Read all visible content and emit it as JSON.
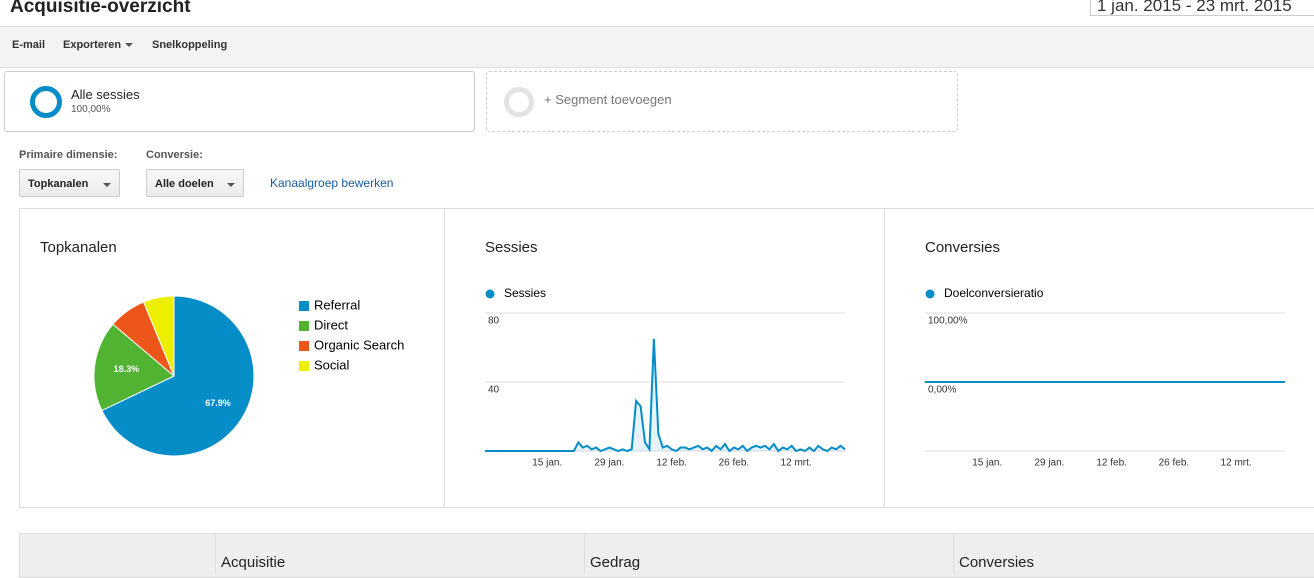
{
  "header": {
    "title": "Acquisitie-overzicht",
    "date_range": "1 jan. 2015 - 23 mrt. 2015"
  },
  "toolbar": {
    "items": [
      "E-mail",
      "Exporteren",
      "Snelkoppeling"
    ]
  },
  "segments": [
    {
      "name": "Alle sessies",
      "percent": "100,00%"
    },
    {
      "name": "+ Segment toevoegen"
    }
  ],
  "controls": {
    "primary_label": "Primaire dimensie:",
    "primary_value": "Topkanalen",
    "conversion_label": "Conversie:",
    "conversion_value": "Alle doelen",
    "link": "Kanaalgroep bewerken"
  },
  "panels": [
    {
      "title": "Topkanalen",
      "chart": {
        "type": "pie",
        "categories": [
          "Referral",
          "Direct",
          "Organic Search",
          "Social"
        ],
        "values": [
          67.9,
          18.3,
          7.6,
          6.2
        ],
        "value_labels": [
          "67.9%",
          "18.3%",
          null,
          null
        ],
        "colors": [
          "#058dc7",
          "#50b432",
          "#ed561b",
          "#edef00"
        ]
      }
    },
    {
      "title": "Sessies",
      "chart": {
        "type": "line",
        "series_name": "Sessies",
        "color": "#058dc7",
        "area": true,
        "x": [
          1,
          2,
          3,
          4,
          5,
          6,
          7,
          8,
          9,
          10,
          11,
          12,
          13,
          14,
          15,
          16,
          17,
          18,
          19,
          20,
          21,
          22,
          23,
          24,
          25,
          26,
          27,
          28,
          29,
          30,
          31,
          32,
          33,
          34,
          35,
          36,
          37,
          38,
          39,
          40,
          41,
          42,
          43,
          44,
          45,
          46,
          47,
          48,
          49,
          50,
          51,
          52,
          53,
          54,
          55,
          56,
          57,
          58,
          59,
          60,
          61,
          62,
          63,
          64,
          65,
          66,
          67,
          68,
          69,
          70,
          71,
          72,
          73,
          74,
          75,
          76,
          77,
          78,
          79,
          80,
          81,
          82
        ],
        "values": [
          0,
          0,
          0,
          0,
          0,
          0,
          0,
          0,
          0,
          0,
          0,
          0,
          0,
          0,
          0,
          0,
          0,
          0,
          0,
          0,
          0,
          5,
          2,
          3,
          1,
          2,
          0,
          1,
          2,
          1,
          0,
          1,
          0,
          1,
          29,
          26,
          5,
          1,
          65,
          10,
          2,
          3,
          1,
          0,
          2,
          2,
          1,
          2,
          3,
          1,
          2,
          0,
          3,
          1,
          4,
          0,
          2,
          1,
          3,
          0,
          2,
          3,
          2,
          3,
          1,
          4,
          0,
          2,
          1,
          3,
          0,
          1,
          0,
          2,
          0,
          3,
          1,
          0,
          2,
          1,
          3,
          1
        ],
        "xlim": [
          1,
          82
        ],
        "xticks": [
          {
            "value": 15,
            "label": "15 jan."
          },
          {
            "value": 29,
            "label": "29 jan."
          },
          {
            "value": 43,
            "label": "12 feb."
          },
          {
            "value": 57,
            "label": "26 feb."
          },
          {
            "value": 71,
            "label": "12 mrt."
          }
        ],
        "ylim": [
          0,
          80
        ],
        "yticks": [
          40,
          80
        ]
      }
    },
    {
      "title": "Conversies",
      "chart": {
        "type": "line",
        "series_name": "Doelconversieratio",
        "color": "#058dc7",
        "area": false,
        "x": [
          1,
          2,
          3,
          4,
          5,
          6,
          7,
          8,
          9,
          10,
          11,
          12,
          13,
          14,
          15,
          16,
          17,
          18,
          19,
          20,
          21,
          22,
          23,
          24,
          25,
          26,
          27,
          28,
          29,
          30,
          31,
          32,
          33,
          34,
          35,
          36,
          37,
          38,
          39,
          40,
          41,
          42,
          43,
          44,
          45,
          46,
          47,
          48,
          49,
          50,
          51,
          52,
          53,
          54,
          55,
          56,
          57,
          58,
          59,
          60,
          61,
          62,
          63,
          64,
          65,
          66,
          67,
          68,
          69,
          70,
          71,
          72,
          73,
          74,
          75,
          76,
          77,
          78,
          79,
          80,
          81,
          82
        ],
        "values": [
          0,
          0,
          0,
          0,
          0,
          0,
          0,
          0,
          0,
          0,
          0,
          0,
          0,
          0,
          0,
          0,
          0,
          0,
          0,
          0,
          0,
          0,
          0,
          0,
          0,
          0,
          0,
          0,
          0,
          0,
          0,
          0,
          0,
          0,
          0,
          0,
          0,
          0,
          0,
          0,
          0,
          0,
          0,
          0,
          0,
          0,
          0,
          0,
          0,
          0,
          0,
          0,
          0,
          0,
          0,
          0,
          0,
          0,
          0,
          0,
          0,
          0,
          0,
          0,
          0,
          0,
          0,
          0,
          0,
          0,
          0,
          0,
          0,
          0,
          0,
          0,
          0,
          0,
          0,
          0,
          0,
          0
        ],
        "xlim": [
          1,
          82
        ],
        "xticks": [
          {
            "value": 15,
            "label": "15 jan."
          },
          {
            "value": 29,
            "label": "29 jan."
          },
          {
            "value": 43,
            "label": "12 feb."
          },
          {
            "value": 57,
            "label": "26 feb."
          },
          {
            "value": 71,
            "label": "12 mrt."
          }
        ],
        "ylim": [
          -100,
          100
        ],
        "yticks": [
          {
            "value": 0,
            "label": "0,00%"
          },
          {
            "value": 100,
            "label": "100,00%"
          }
        ]
      }
    }
  ],
  "table": {
    "groups": [
      "Acquisitie",
      "Gedrag",
      "Conversies"
    ]
  }
}
